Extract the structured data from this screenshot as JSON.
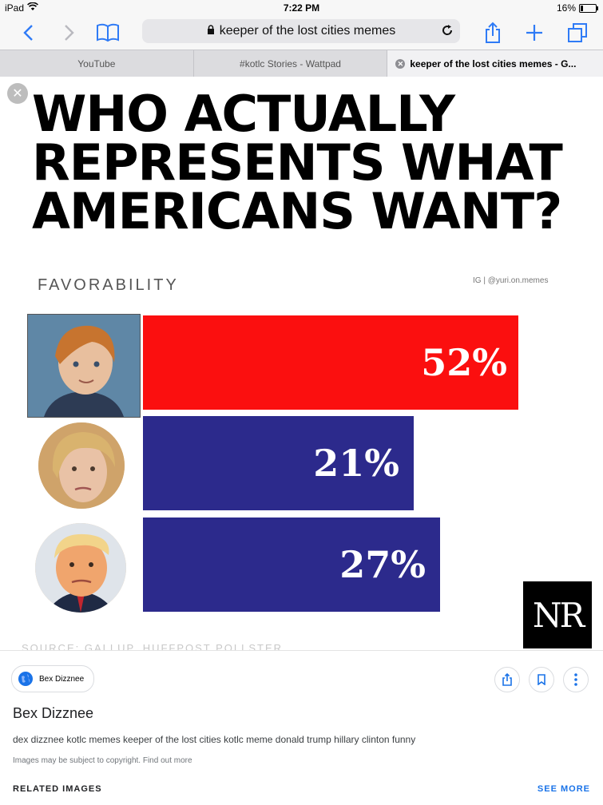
{
  "status_bar": {
    "device": "iPad",
    "time": "7:22 PM",
    "battery": "16%",
    "battery_level": 0.16
  },
  "toolbar": {
    "url_text": "keeper of the lost cities memes"
  },
  "tabs": [
    {
      "label": "YouTube"
    },
    {
      "label": "#kotlc Stories - Wattpad"
    },
    {
      "label": "keeper of the lost cities memes - G..."
    }
  ],
  "image": {
    "headline_line1": "WHO ACTUALLY",
    "headline_line2": "REPRESENTS WHAT",
    "headline_line3": "AMERICANS WANT?",
    "subtitle": "FAVORABILITY",
    "credit": "IG | @yuri.on.memes",
    "bars": [
      {
        "label": "52%",
        "value": 52,
        "color": "#fb0f0f"
      },
      {
        "label": "21%",
        "value": 21,
        "color": "#2c2a8c"
      },
      {
        "label": "27%",
        "value": 27,
        "color": "#2c2a8c"
      }
    ],
    "logo_text": "NR",
    "source_text": "SOURCE: GALLUP, HUFFPOST POLLSTER"
  },
  "info": {
    "chip_label": "Bex Dizznee",
    "title": "Bex Dizznee",
    "description": "dex dizznee kotlc memes keeper of the lost cities kotlc meme donald trump hillary clinton funny",
    "copyright": "Images may be subject to copyright. Find out more",
    "related_label": "RELATED IMAGES",
    "see_more_label": "SEE MORE"
  },
  "icons": [
    "wifi-icon",
    "back-icon",
    "forward-icon",
    "bookmarks-icon",
    "lock-icon",
    "reload-icon",
    "share-icon",
    "new-tab-icon",
    "tabs-icon",
    "close-icon",
    "globe-icon",
    "bookmark-icon",
    "more-icon"
  ]
}
